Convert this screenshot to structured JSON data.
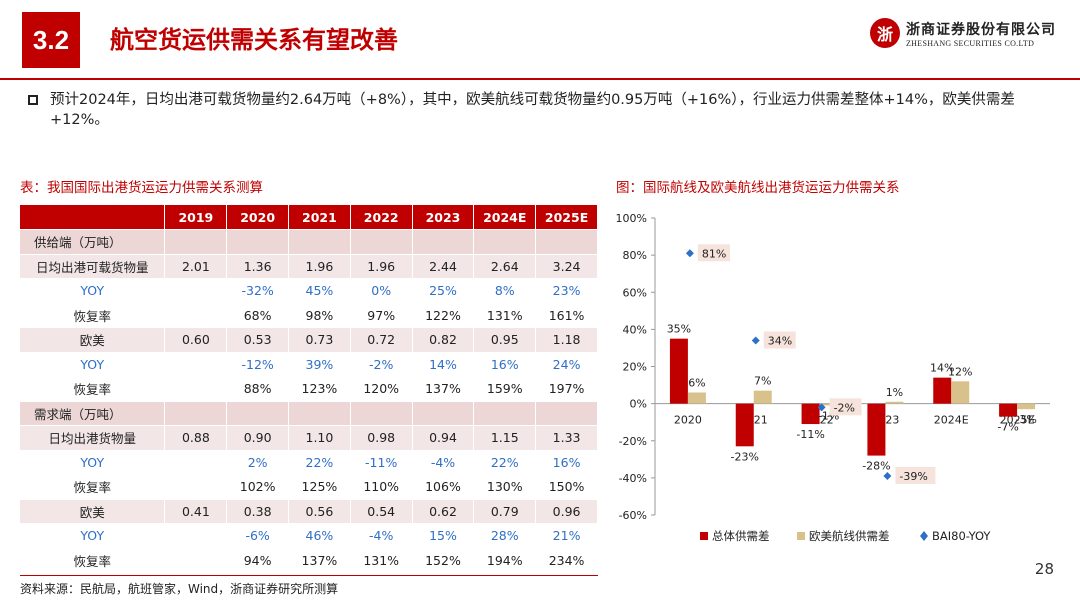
{
  "header": {
    "section_number": "3.2",
    "title": "航空货运供需关系有望改善",
    "logo_cn": "浙商证券股份有限公司",
    "logo_en": "ZHESHANG SECURITIES CO.LTD",
    "logo_mark": "浙"
  },
  "bullet": "预计2024年，日均出港可载货物量约2.64万吨（+8%），其中，欧美航线可载货物量约0.95万吨（+16%），行业运力供需差整体+14%，欧美供需差+12%。",
  "table": {
    "caption": "表：我国国际出港货运运力供需关系测算",
    "columns": [
      "",
      "2019",
      "2020",
      "2021",
      "2022",
      "2023",
      "2024E",
      "2025E"
    ],
    "rows": [
      {
        "kind": "sec",
        "cells": [
          "供给端（万吨）",
          "",
          "",
          "",
          "",
          "",
          "",
          ""
        ]
      },
      {
        "kind": "main",
        "cells": [
          "日均出港可载货物量",
          "2.01",
          "1.36",
          "1.96",
          "1.96",
          "2.44",
          "2.64",
          "3.24"
        ]
      },
      {
        "kind": "yoy",
        "cells": [
          "YOY",
          "",
          "-32%",
          "45%",
          "0%",
          "25%",
          "8%",
          "23%"
        ]
      },
      {
        "kind": "rate",
        "cells": [
          "恢复率",
          "",
          "68%",
          "98%",
          "97%",
          "122%",
          "131%",
          "161%"
        ]
      },
      {
        "kind": "main",
        "cells": [
          "欧美",
          "0.60",
          "0.53",
          "0.73",
          "0.72",
          "0.82",
          "0.95",
          "1.18"
        ]
      },
      {
        "kind": "yoy",
        "cells": [
          "YOY",
          "",
          "-12%",
          "39%",
          "-2%",
          "14%",
          "16%",
          "24%"
        ]
      },
      {
        "kind": "rate",
        "cells": [
          "恢复率",
          "",
          "88%",
          "123%",
          "120%",
          "137%",
          "159%",
          "197%"
        ]
      },
      {
        "kind": "sec",
        "cells": [
          "需求端（万吨）",
          "",
          "",
          "",
          "",
          "",
          "",
          ""
        ]
      },
      {
        "kind": "main",
        "cells": [
          "日均出港货物量",
          "0.88",
          "0.90",
          "1.10",
          "0.98",
          "0.94",
          "1.15",
          "1.33"
        ]
      },
      {
        "kind": "yoy",
        "cells": [
          "YOY",
          "",
          "2%",
          "22%",
          "-11%",
          "-4%",
          "22%",
          "16%"
        ]
      },
      {
        "kind": "rate",
        "cells": [
          "恢复率",
          "",
          "102%",
          "125%",
          "110%",
          "106%",
          "130%",
          "150%"
        ]
      },
      {
        "kind": "main",
        "cells": [
          "欧美",
          "0.41",
          "0.38",
          "0.56",
          "0.54",
          "0.62",
          "0.79",
          "0.96"
        ]
      },
      {
        "kind": "yoy",
        "cells": [
          "YOY",
          "",
          "-6%",
          "46%",
          "-4%",
          "15%",
          "28%",
          "21%"
        ]
      },
      {
        "kind": "rate",
        "cells": [
          "恢复率",
          "",
          "94%",
          "137%",
          "131%",
          "152%",
          "194%",
          "234%"
        ]
      }
    ]
  },
  "figure_caption": "图：国际航线及欧美航线出港货运运力供需关系",
  "source": "资料来源：民航局，航班管家，Wind，浙商证券研究所测算",
  "page_number": "28",
  "chart_data": {
    "type": "bar",
    "categories": [
      "2020",
      "2021",
      "2022",
      "2023",
      "2024E",
      "2025E"
    ],
    "series": [
      {
        "name": "总体供需差",
        "kind": "bar",
        "color": "#c00000",
        "values": [
          35,
          -23,
          -11,
          -28,
          14,
          -7
        ],
        "labels": [
          "35%",
          "-23%",
          "-11%",
          "-28%",
          "14%",
          "-7%"
        ]
      },
      {
        "name": "欧美航线供需差",
        "kind": "bar",
        "color": "#d8c18a",
        "values": [
          6,
          7,
          -1,
          1,
          12,
          -3
        ],
        "labels": [
          "6%",
          "7%",
          "-1%",
          "1%",
          "12%",
          "-3%"
        ]
      },
      {
        "name": "BAI80-YOY",
        "kind": "scatter",
        "color": "#2f6fc7",
        "values": [
          81,
          34,
          -2,
          -39,
          null,
          null
        ],
        "labels": [
          "81%",
          "34%",
          "-2%",
          "-39%",
          "",
          ""
        ]
      }
    ],
    "ylim": [
      -60,
      100
    ],
    "yticks": [
      -60,
      -40,
      -20,
      0,
      20,
      40,
      60,
      80,
      100
    ],
    "ytick_labels": [
      "-60%",
      "-40%",
      "-20%",
      "0%",
      "20%",
      "40%",
      "60%",
      "80%",
      "100%"
    ],
    "legend_position": "bottom",
    "grid": false
  }
}
